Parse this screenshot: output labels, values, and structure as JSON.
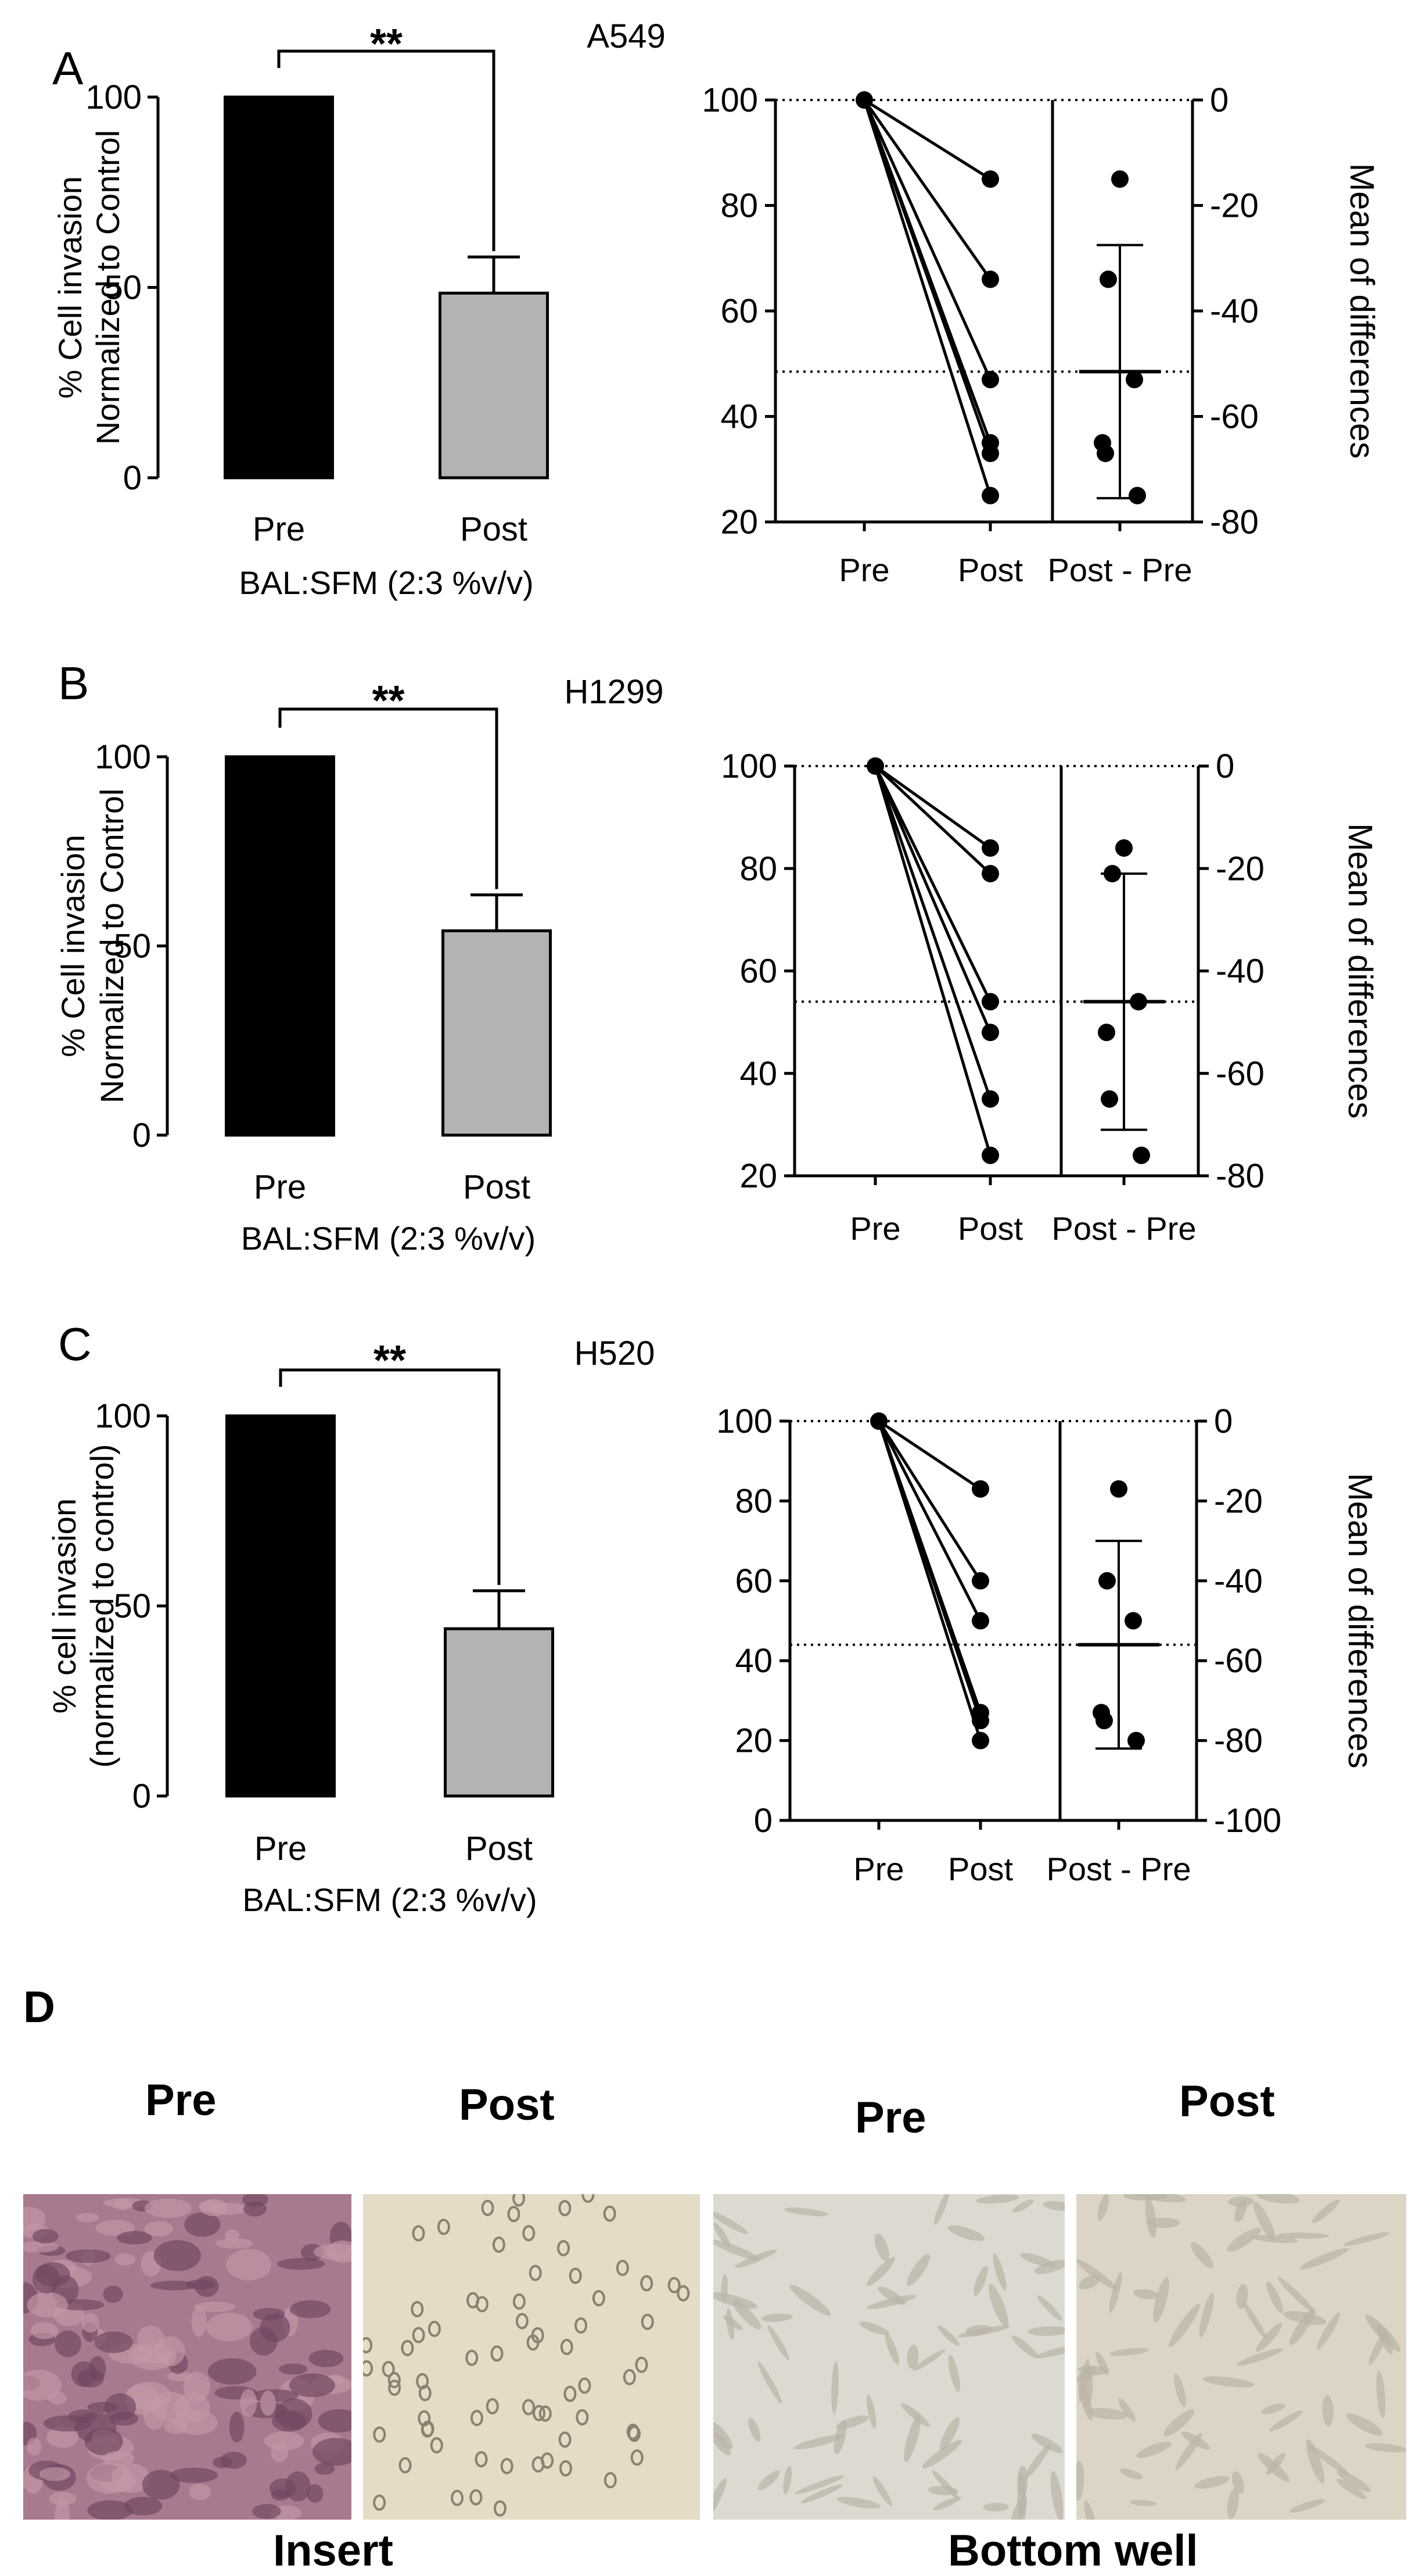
{
  "chart_data": [
    {
      "panel": "A",
      "cell_line": "A549",
      "bar": {
        "type": "bar",
        "categories": [
          "Pre",
          "Post"
        ],
        "values": [
          100,
          48.5
        ],
        "errors": [
          0,
          9.5
        ],
        "colors": [
          "#000000",
          "#b3b3b3"
        ],
        "ylim": [
          0,
          100
        ],
        "yticks": [
          0,
          50,
          100
        ],
        "ylabel": [
          "% Cell invasion",
          "Normalized to Control"
        ],
        "xlabel": "BAL:SFM (2:3 %v/v)",
        "significance": "**"
      },
      "paired": {
        "type": "line",
        "categories": [
          "Pre",
          "Post",
          "Post - Pre"
        ],
        "pre": 100,
        "post": [
          85,
          66,
          47,
          35,
          33,
          25
        ],
        "diffs": [
          -15,
          -34,
          -53,
          -65,
          -67,
          -75
        ],
        "mean_diff": -51.5,
        "ci": [
          -27.5,
          -75.5
        ],
        "ylim": [
          20,
          100
        ],
        "yticks": [
          20,
          40,
          60,
          80,
          100
        ],
        "y2lim": [
          -80,
          0
        ],
        "y2ticks": [
          0,
          -20,
          -40,
          -60,
          -80
        ],
        "y2label": "Mean of differences"
      }
    },
    {
      "panel": "B",
      "cell_line": "H1299",
      "bar": {
        "type": "bar",
        "categories": [
          "Pre",
          "Post"
        ],
        "values": [
          100,
          54
        ],
        "errors": [
          0,
          9.5
        ],
        "colors": [
          "#000000",
          "#b3b3b3"
        ],
        "ylim": [
          0,
          100
        ],
        "yticks": [
          0,
          50,
          100
        ],
        "ylabel": [
          "% Cell invasion",
          "Normalized to Control"
        ],
        "xlabel": "BAL:SFM (2:3 %v/v)",
        "significance": "**"
      },
      "paired": {
        "type": "line",
        "categories": [
          "Pre",
          "Post",
          "Post - Pre"
        ],
        "pre": 100,
        "post": [
          84,
          79,
          54,
          48,
          35,
          24
        ],
        "diffs": [
          -16,
          -21,
          -46,
          -52,
          -65,
          -76
        ],
        "mean_diff": -46,
        "ci": [
          -21,
          -71
        ],
        "ylim": [
          20,
          100
        ],
        "yticks": [
          20,
          40,
          60,
          80,
          100
        ],
        "y2lim": [
          -80,
          0
        ],
        "y2ticks": [
          0,
          -20,
          -40,
          -60,
          -80
        ],
        "y2label": "Mean of differences"
      }
    },
    {
      "panel": "C",
      "cell_line": "H520",
      "bar": {
        "type": "bar",
        "categories": [
          "Pre",
          "Post"
        ],
        "values": [
          100,
          44
        ],
        "errors": [
          0,
          10
        ],
        "colors": [
          "#000000",
          "#b3b3b3"
        ],
        "ylim": [
          0,
          100
        ],
        "yticks": [
          0,
          50,
          100
        ],
        "ylabel": [
          "% cell invasion",
          "(normalized to control)"
        ],
        "xlabel": "BAL:SFM (2:3 %v/v)",
        "significance": "**"
      },
      "paired": {
        "type": "line",
        "categories": [
          "Pre",
          "Post",
          "Post - Pre"
        ],
        "pre": 100,
        "post": [
          83,
          60,
          50,
          27,
          25,
          20
        ],
        "diffs": [
          -17,
          -40,
          -50,
          -73,
          -75,
          -80
        ],
        "mean_diff": -56,
        "ci": [
          -30,
          -82
        ],
        "ylim": [
          0,
          100
        ],
        "yticks": [
          0,
          20,
          40,
          60,
          80,
          100
        ],
        "y2lim": [
          -100,
          0
        ],
        "y2ticks": [
          0,
          -20,
          -40,
          -60,
          -80,
          -100
        ],
        "y2label": "Mean of differences"
      }
    }
  ],
  "panel_d": {
    "label": "D",
    "images": [
      {
        "label": "Pre",
        "tone": "#a9798f"
      },
      {
        "label": "Post",
        "tone": "#e4dcc6"
      },
      {
        "label": "Pre",
        "tone": "#dcd9d1"
      },
      {
        "label": "Post",
        "tone": "#dcd5c6"
      }
    ],
    "group_labels": [
      "Insert",
      "Bottom well"
    ]
  }
}
